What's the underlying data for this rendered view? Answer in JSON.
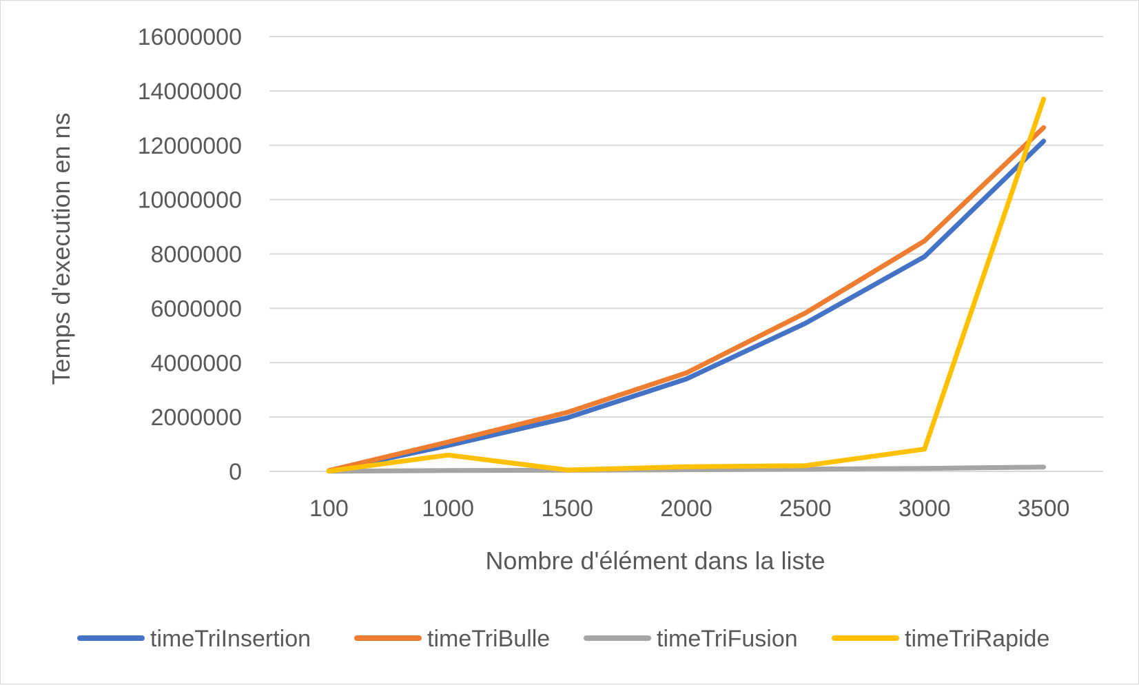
{
  "chart_data": {
    "type": "line",
    "title": "",
    "xlabel": "Nombre d'élément dans la liste",
    "ylabel": "Temps d'execution en ns",
    "categories": [
      "100",
      "1000",
      "1500",
      "2000",
      "2500",
      "3000",
      "3500"
    ],
    "ylim": [
      0,
      16000000
    ],
    "yticks": [
      0,
      2000000,
      4000000,
      6000000,
      8000000,
      10000000,
      12000000,
      14000000,
      16000000
    ],
    "ytick_labels": [
      "0",
      "2000000",
      "4000000",
      "6000000",
      "8000000",
      "10000000",
      "12000000",
      "14000000",
      "16000000"
    ],
    "grid": true,
    "legend_position": "bottom",
    "series": [
      {
        "name": "timeTriInsertion",
        "color": "#4472C4",
        "values": [
          20000,
          950000,
          1970000,
          3400000,
          5450000,
          7900000,
          12150000
        ]
      },
      {
        "name": "timeTriBulle",
        "color": "#ED7D31",
        "values": [
          30000,
          1080000,
          2170000,
          3620000,
          5830000,
          8480000,
          12650000
        ]
      },
      {
        "name": "timeTriFusion",
        "color": "#A5A5A5",
        "values": [
          5000,
          30000,
          40000,
          60000,
          80000,
          110000,
          160000
        ]
      },
      {
        "name": "timeTriRapide",
        "color": "#FFC000",
        "values": [
          10000,
          600000,
          50000,
          170000,
          210000,
          820000,
          13700000
        ]
      }
    ]
  }
}
